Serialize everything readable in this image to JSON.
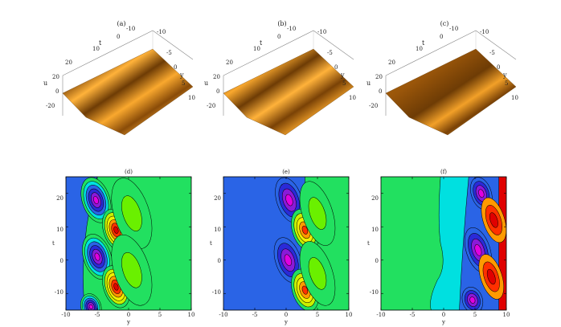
{
  "panels_3d": [
    {
      "label": "(a)",
      "t_ticks": [
        "20",
        "10",
        "0",
        "-10"
      ],
      "y_ticks": [
        "-10",
        "-5",
        "0",
        "5",
        "10"
      ],
      "u_ticks": [
        "20",
        "0",
        "-20"
      ],
      "t_axis": "t",
      "y_axis": "y",
      "u_axis": "u"
    },
    {
      "label": "(b)",
      "t_ticks": [
        "20",
        "10",
        "0",
        "-10"
      ],
      "y_ticks": [
        "-10",
        "-5",
        "0",
        "5",
        "10"
      ],
      "u_ticks": [
        "20",
        "0",
        "-20"
      ],
      "t_axis": "t",
      "y_axis": "y",
      "u_axis": "u"
    },
    {
      "label": "(c)",
      "t_ticks": [
        "20",
        "10",
        "0",
        "-10"
      ],
      "y_ticks": [
        "-10",
        "-5",
        "0",
        "5",
        "10"
      ],
      "u_ticks": [
        "20",
        "0",
        "-20"
      ],
      "t_axis": "t",
      "y_axis": "y",
      "u_axis": "u"
    }
  ],
  "chart_data": [
    {
      "type": "heatmap",
      "title": "(d)",
      "xlabel": "y",
      "ylabel": "t",
      "xlim": [
        -10,
        10
      ],
      "ylim": [
        -15,
        25
      ],
      "x_ticks": [
        "-10",
        "-5",
        "0",
        "5",
        "10"
      ],
      "y_ticks": [
        "-10",
        "0",
        "10",
        "20"
      ],
      "background_color": "#22e060"
    },
    {
      "type": "heatmap",
      "title": "(e)",
      "xlabel": "y",
      "ylabel": "t",
      "xlim": [
        -10,
        10
      ],
      "ylim": [
        -15,
        25
      ],
      "x_ticks": [
        "-10",
        "-5",
        "0",
        "5",
        "10"
      ],
      "y_ticks": [
        "-10",
        "0",
        "10",
        "20"
      ],
      "background_color": "#2a64e6"
    },
    {
      "type": "heatmap",
      "title": "(f)",
      "xlabel": "y",
      "ylabel": "t",
      "xlim": [
        -10,
        10
      ],
      "ylim": [
        -15,
        25
      ],
      "x_ticks": [
        "-10",
        "-5",
        "0",
        "5",
        "10"
      ],
      "y_ticks": [
        "-10",
        "0",
        "10",
        "20"
      ],
      "background_color": "#22e060"
    }
  ]
}
